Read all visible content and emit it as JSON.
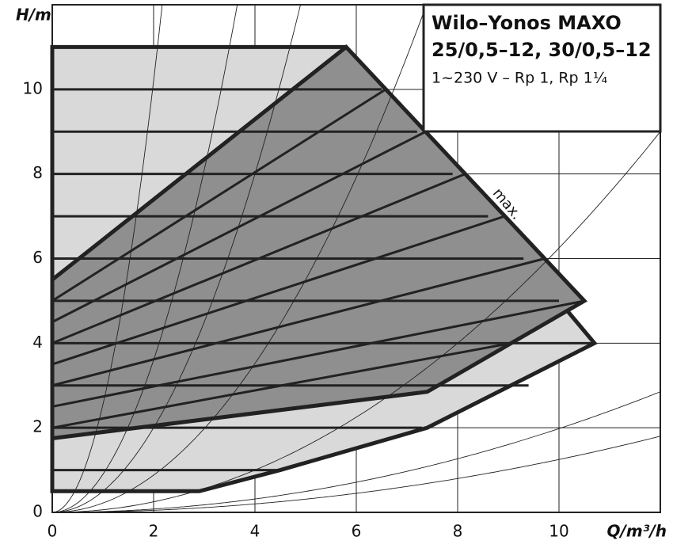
{
  "chart_data": {
    "type": "pump-curve",
    "title": "Wilo–Yonos MAXO",
    "subtitle": "25/0,5–12, 30/0,5–12",
    "note": "1~230 V – Rp 1, Rp 1¼",
    "annotation": "max.",
    "x_label": "Q/m³/h",
    "y_label": "H/m",
    "xlim": [
      0,
      12
    ],
    "ylim": [
      0,
      12
    ],
    "xticks": [
      0,
      2,
      4,
      6,
      8,
      10
    ],
    "yticks": [
      0,
      2,
      4,
      6,
      8,
      10
    ],
    "grid": true,
    "max_region": {
      "color": "#d9d9d9",
      "x": [
        0,
        5.8,
        10.7,
        7.4,
        4.5,
        2.9,
        0
      ],
      "y": [
        11,
        11,
        4,
        2,
        1,
        0.5,
        0.5
      ]
    },
    "dp_region": {
      "color": "#8f8f8f",
      "x": [
        0,
        5.8,
        10.5,
        7.4,
        0
      ],
      "y": [
        5.5,
        11,
        5,
        2.85,
        1.75
      ]
    },
    "constant_pressure": {
      "H": [
        11,
        10,
        9,
        8,
        7,
        6,
        5,
        4,
        3,
        2,
        1,
        0.5
      ],
      "Qmax": [
        5.8,
        6.5,
        7.2,
        7.9,
        8.6,
        9.3,
        10.0,
        10.7,
        9.4,
        7.3,
        4.5,
        2.9
      ]
    },
    "dp_variable": {
      "H_start": [
        5.5,
        5,
        4.5,
        4,
        3.5,
        3,
        2.5,
        2
      ],
      "H_end": [
        11,
        10,
        9,
        8,
        7,
        6,
        5,
        4
      ],
      "Q_end": [
        5.8,
        6.58,
        7.37,
        8.15,
        8.93,
        9.72,
        10.5,
        9.06
      ]
    },
    "system_curves_k": [
      2.55,
      0.9,
      0.5,
      0.22,
      0.0625,
      0.0198,
      0.0125
    ]
  }
}
